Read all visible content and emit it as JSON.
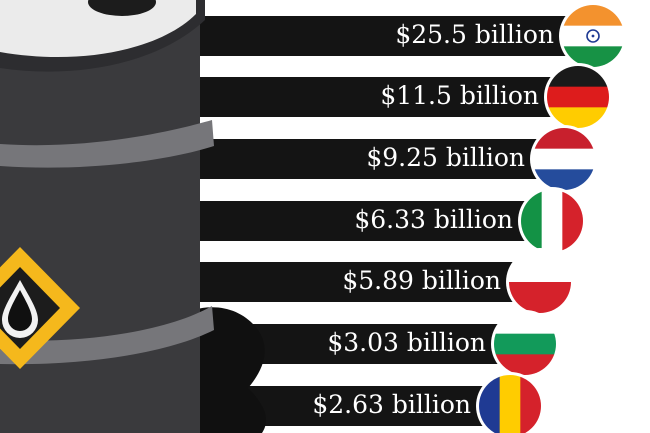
{
  "chart_data": {
    "type": "bar",
    "orientation": "horizontal",
    "categories": [
      "India",
      "Germany",
      "Netherlands",
      "Italy",
      "Poland",
      "Bulgaria",
      "Romania"
    ],
    "values": [
      25.5,
      11.5,
      9.25,
      6.33,
      5.89,
      3.03,
      2.63
    ],
    "data_labels": [
      "$25.5 billion",
      "$11.5 billion",
      "$9.25 billion",
      "$6.33 billion",
      "$5.89 billion",
      "$3.03 billion",
      "$2.63 billion"
    ],
    "flags": [
      "india-flag-icon",
      "germany-flag-icon",
      "netherlands-flag-icon",
      "italy-flag-icon",
      "poland-flag-icon",
      "bulgaria-flag-icon",
      "romania-flag-icon"
    ],
    "colors": {
      "bar": "#141414",
      "label": "#ffffff",
      "barrel_body": "#3a3a3d",
      "barrel_band": "#76767a",
      "barrel_top": "#ebebeb",
      "hazard": "#f5b81c",
      "oil": "#101010"
    }
  }
}
